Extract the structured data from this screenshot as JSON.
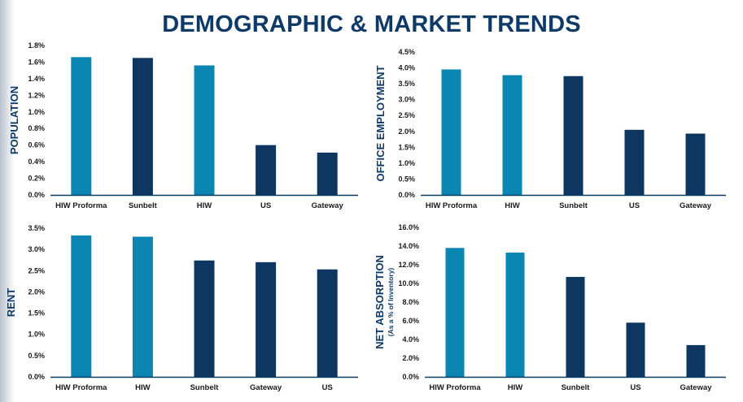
{
  "title": "DEMOGRAPHIC & MARKET TRENDS",
  "colors": {
    "light": "#0b86b3",
    "dark": "#0d3660",
    "axis": "#0d3a66",
    "title": "#0d3a66"
  },
  "chart_data": [
    {
      "type": "bar",
      "ylabel": "POPULATION",
      "ysub": "",
      "categories": [
        "HIW Proforma",
        "Sunbelt",
        "HIW",
        "US",
        "Gateway"
      ],
      "values": [
        1.66,
        1.65,
        1.56,
        0.6,
        0.51
      ],
      "bar_colors": [
        "light",
        "dark",
        "light",
        "dark",
        "dark"
      ],
      "ylim": [
        0,
        1.8
      ],
      "yticks": [
        "0.0%",
        "0.2%",
        "0.4%",
        "0.6%",
        "0.8%",
        "1.0%",
        "1.2%",
        "1.4%",
        "1.6%",
        "1.8%"
      ],
      "grid": false
    },
    {
      "type": "bar",
      "ylabel": "OFFICE EMPLOYMENT",
      "ysub": "",
      "categories": [
        "HIW Proforma",
        "HIW",
        "Sunbelt",
        "US",
        "Gateway"
      ],
      "values": [
        3.95,
        3.77,
        3.74,
        2.05,
        1.93
      ],
      "bar_colors": [
        "light",
        "light",
        "dark",
        "dark",
        "dark"
      ],
      "ylim": [
        0,
        4.5
      ],
      "yticks": [
        "0.0%",
        "0.5%",
        "1.0%",
        "1.5%",
        "2.0%",
        "2.5%",
        "3.0%",
        "3.5%",
        "4.0%",
        "4.5%"
      ],
      "grid": false
    },
    {
      "type": "bar",
      "ylabel": "RENT",
      "ysub": "",
      "categories": [
        "HIW Proforma",
        "HIW",
        "Sunbelt",
        "Gateway",
        "US"
      ],
      "values": [
        3.33,
        3.3,
        2.74,
        2.7,
        2.53
      ],
      "bar_colors": [
        "light",
        "light",
        "dark",
        "dark",
        "dark"
      ],
      "ylim": [
        0,
        3.5
      ],
      "yticks": [
        "0.0%",
        "0.5%",
        "1.0%",
        "1.5%",
        "2.0%",
        "2.5%",
        "3.0%",
        "3.5%"
      ],
      "grid": false
    },
    {
      "type": "bar",
      "ylabel": "NET ABSORPTION",
      "ysub": "(As a % of Inventory)",
      "categories": [
        "HIW Proforma",
        "HIW",
        "Sunbelt",
        "US",
        "Gateway"
      ],
      "values": [
        13.8,
        13.3,
        10.7,
        5.8,
        3.4
      ],
      "bar_colors": [
        "light",
        "light",
        "dark",
        "dark",
        "dark"
      ],
      "ylim": [
        0,
        16
      ],
      "yticks": [
        "0.0%",
        "2.0%",
        "4.0%",
        "6.0%",
        "8.0%",
        "10.0%",
        "12.0%",
        "14.0%",
        "16.0%"
      ],
      "grid": false
    }
  ]
}
